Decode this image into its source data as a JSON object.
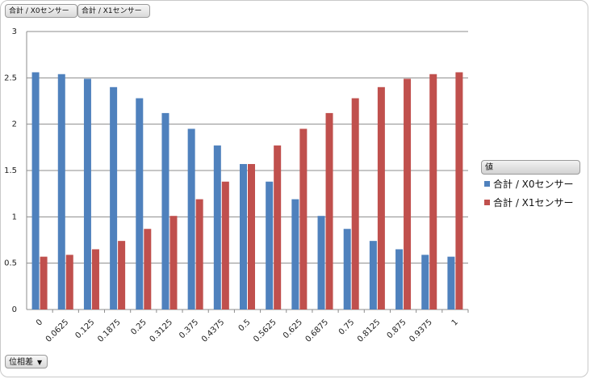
{
  "fields": {
    "series_buttons": [
      "合計 / X0センサー",
      "合計 / X1センサー"
    ],
    "filter_button": "位相差"
  },
  "legend": {
    "title": "値",
    "items": [
      {
        "label": "合計 / X0センサー",
        "color": "#4f81bd"
      },
      {
        "label": "合計 / X1センサー",
        "color": "#c0504d"
      }
    ]
  },
  "chart_data": {
    "type": "bar",
    "categories": [
      "0",
      "0.0625",
      "0.125",
      "0.1875",
      "0.25",
      "0.3125",
      "0.375",
      "0.4375",
      "0.5",
      "0.5625",
      "0.625",
      "0.6875",
      "0.75",
      "0.8125",
      "0.875",
      "0.9375",
      "1"
    ],
    "series": [
      {
        "name": "合計 / X0センサー",
        "color": "#4f81bd",
        "values": [
          2.56,
          2.54,
          2.49,
          2.4,
          2.28,
          2.12,
          1.95,
          1.77,
          1.57,
          1.38,
          1.19,
          1.01,
          0.87,
          0.74,
          0.65,
          0.59,
          0.57
        ]
      },
      {
        "name": "合計 / X1センサー",
        "color": "#c0504d",
        "values": [
          0.57,
          0.59,
          0.65,
          0.74,
          0.87,
          1.01,
          1.19,
          1.38,
          1.57,
          1.77,
          1.95,
          2.12,
          2.28,
          2.4,
          2.49,
          2.54,
          2.56
        ]
      }
    ],
    "ylim": [
      0,
      3
    ],
    "yticks": [
      "0",
      "0.5",
      "1",
      "1.5",
      "2",
      "2.5",
      "3"
    ],
    "grid": true,
    "legend_position": "right"
  }
}
